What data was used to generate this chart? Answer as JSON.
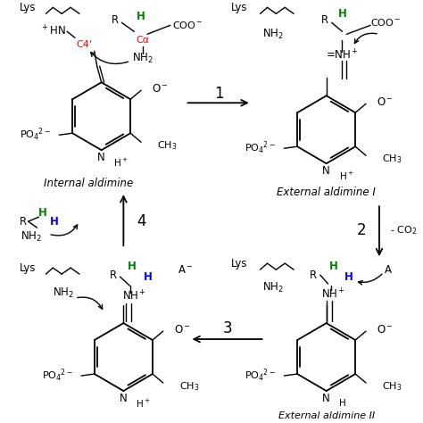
{
  "bg_color": "#ffffff",
  "lys_label": "Lys",
  "int_aldimine_label": "Internal aldimine",
  "ext_aldimine1_label": "External aldimine I",
  "ext_aldimine2_label": "External aldimine II",
  "step1": "1",
  "step2": "2",
  "step3": "3",
  "step4": "4"
}
